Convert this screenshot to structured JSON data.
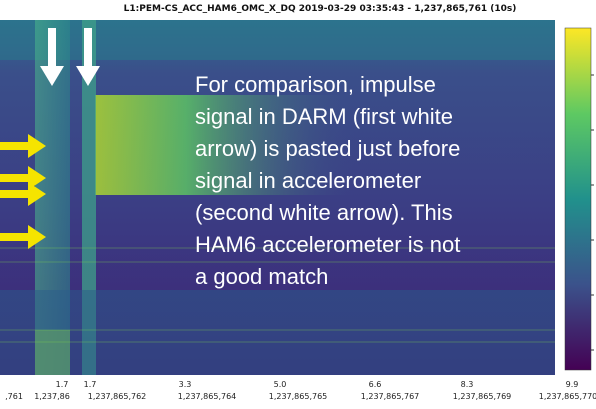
{
  "title": "L1:PEM-CS_ACC_HAM6_OMC_X_DQ 2019-03-29 03:35:43 - 1,237,865,761 (10s)",
  "annotation": [
    "For comparison, impulse",
    "signal in DARM (first white",
    "arrow) is pasted just before",
    "signal in accelerometer",
    "(second white arrow). This",
    "HAM6 accelerometer is not",
    "a good match"
  ],
  "x_tick_top": [
    "1.7",
    "1.7",
    "3.3",
    "5.0",
    "6.6",
    "8.3",
    "9.9"
  ],
  "x_tick_bottom": [
    ",761",
    "1,237,86",
    "1,237,865,762",
    "1,237,865,764",
    "1,237,865,765",
    "1,237,865,767",
    "1,237,865,769",
    "1,237,865,770"
  ]
}
